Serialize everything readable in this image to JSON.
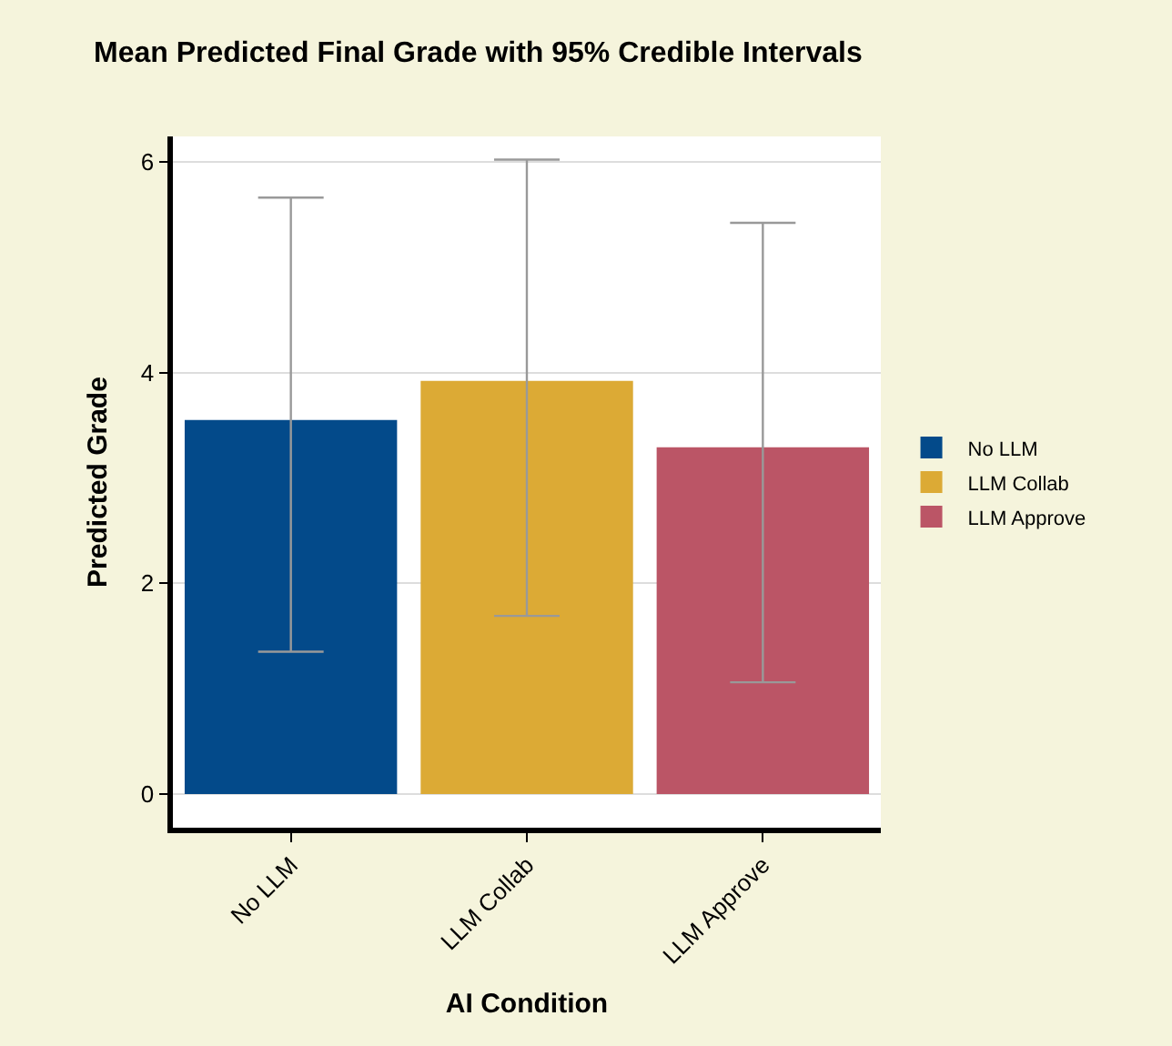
{
  "chart_data": {
    "type": "bar",
    "title": "Mean Predicted Final Grade with 95% Credible Intervals",
    "xlabel": "AI Condition",
    "ylabel": "Predicted Grade",
    "categories": [
      "No LLM",
      "LLM Collab",
      "LLM Approve"
    ],
    "series": [
      {
        "name": "No LLM",
        "color": "#034a8a",
        "values": [
          3.55,
          null,
          null
        ],
        "errors": [
          [
            1.35,
            5.66
          ],
          null,
          null
        ]
      },
      {
        "name": "LLM Collab",
        "color": "#dcaa35",
        "values": [
          null,
          3.92,
          null
        ],
        "errors": [
          null,
          [
            1.69,
            6.02
          ],
          null
        ]
      },
      {
        "name": "LLM Approve",
        "color": "#bb5566",
        "values": [
          null,
          null,
          3.29
        ],
        "errors": [
          null,
          null,
          [
            1.06,
            5.42
          ]
        ]
      }
    ],
    "ylim": [
      -0.32,
      6.24
    ],
    "yticks": [
      0,
      2,
      4,
      6
    ],
    "grid": "y",
    "legend": "right"
  }
}
